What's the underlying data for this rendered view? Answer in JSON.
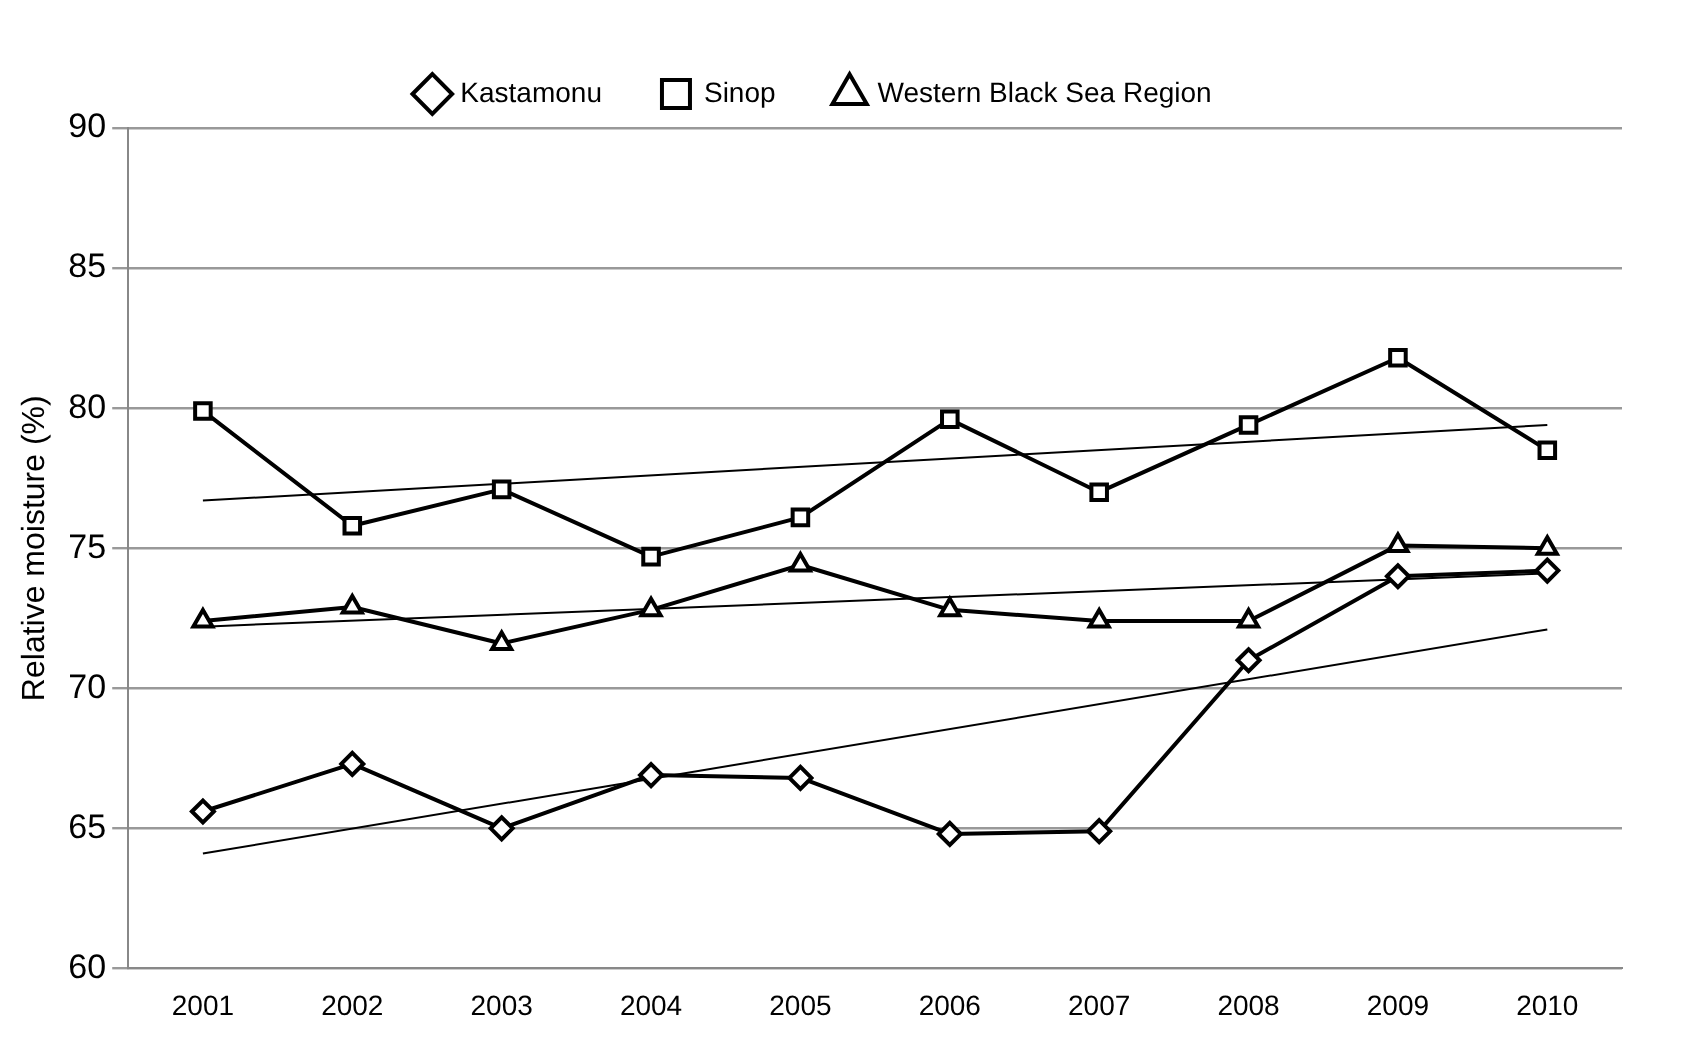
{
  "chart_data": {
    "type": "line",
    "ylabel": "Relative moisture (%)",
    "categories": [
      "2001",
      "2002",
      "2003",
      "2004",
      "2005",
      "2006",
      "2007",
      "2008",
      "2009",
      "2010"
    ],
    "ylim": [
      60,
      90
    ],
    "yticks": [
      60,
      65,
      70,
      75,
      80,
      85,
      90
    ],
    "grid": "y",
    "legend": "top",
    "line_style": "solid",
    "series": [
      {
        "name": "Kastamonu",
        "color": "#000000",
        "marker": "diamond",
        "values": [
          65.6,
          67.3,
          65.0,
          66.9,
          66.8,
          64.8,
          64.9,
          71.0,
          74.0,
          74.2
        ]
      },
      {
        "name": "Sinop",
        "color": "#000000",
        "marker": "square",
        "values": [
          79.9,
          75.8,
          77.1,
          74.7,
          76.1,
          79.6,
          77.0,
          79.4,
          81.8,
          78.5
        ]
      },
      {
        "name": "Western Black Sea Region",
        "color": "#000000",
        "marker": "triangle",
        "values": [
          72.4,
          72.9,
          71.6,
          72.8,
          74.4,
          72.8,
          72.4,
          72.4,
          75.1,
          75.0
        ]
      },
      {
        "type": "line",
        "color": "#000000",
        "marker": "none",
        "values": [
          64.1,
          null,
          null,
          null,
          null,
          null,
          null,
          null,
          null,
          72.1
        ]
      },
      {
        "type": "line",
        "color": "#000000",
        "marker": "none",
        "values": [
          76.7,
          null,
          null,
          null,
          null,
          null,
          null,
          null,
          null,
          79.4
        ]
      },
      {
        "type": "line",
        "color": "#000000",
        "marker": "none",
        "values": [
          72.2,
          null,
          null,
          null,
          null,
          null,
          null,
          null,
          null,
          74.1
        ]
      }
    ]
  }
}
